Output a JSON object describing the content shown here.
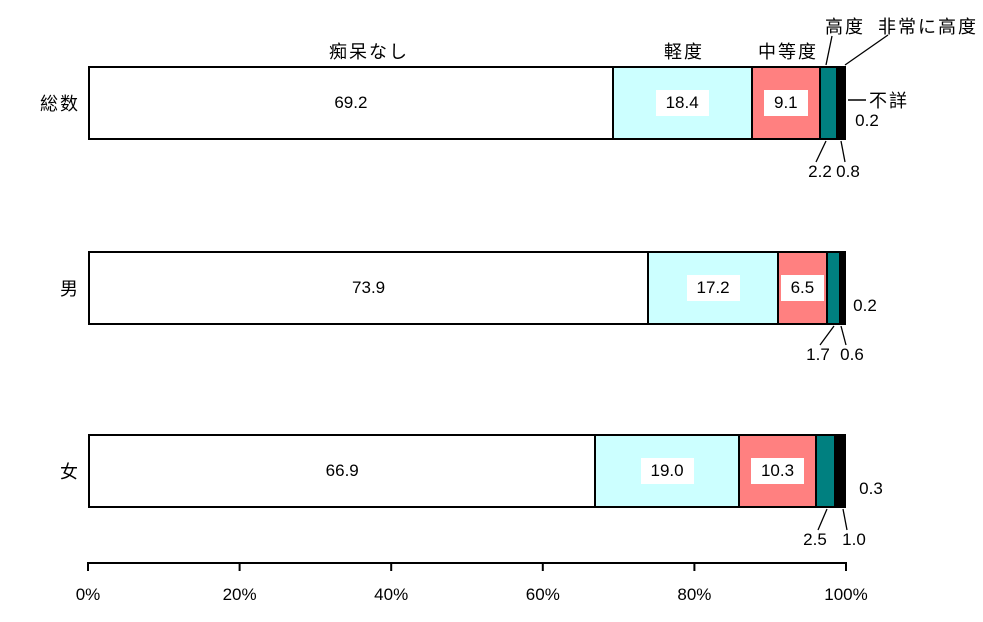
{
  "chart_data": {
    "type": "bar",
    "subtype": "horizontal-stacked",
    "unit": "%",
    "categories": [
      "総数",
      "男",
      "女"
    ],
    "series": [
      {
        "key": "no-dementia",
        "name": "痴呆なし",
        "color": "#FFFFFF",
        "values": [
          69.2,
          73.9,
          66.9
        ],
        "labels": [
          "69.2",
          "73.9",
          "66.9"
        ]
      },
      {
        "key": "mild",
        "name": "軽度",
        "color": "#CCFFFF",
        "values": [
          18.4,
          17.2,
          19.0
        ],
        "labels": [
          "18.4",
          "17.2",
          "19.0"
        ]
      },
      {
        "key": "moderate",
        "name": "中等度",
        "color": "#FF8080",
        "values": [
          9.1,
          6.5,
          10.3
        ],
        "labels": [
          "9.1",
          "6.5",
          "10.3"
        ]
      },
      {
        "key": "severe",
        "name": "高度",
        "color": "#008080",
        "values": [
          2.2,
          1.7,
          2.5
        ],
        "labels": [
          "2.2",
          "1.7",
          "2.5"
        ]
      },
      {
        "key": "very-severe",
        "name": "非常に高度",
        "color": "#000000",
        "values": [
          0.8,
          0.6,
          1.0
        ],
        "labels": [
          "0.8",
          "0.6",
          "1.0"
        ]
      },
      {
        "key": "unknown",
        "name": "不詳",
        "color": "#000000",
        "values": [
          0.2,
          0.2,
          0.3
        ],
        "labels": [
          "0.2",
          "0.2",
          "0.3"
        ]
      }
    ],
    "x_axis": {
      "min": 0,
      "max": 100,
      "tick_labels": [
        "0%",
        "20%",
        "40%",
        "60%",
        "80%",
        "100%"
      ],
      "grid": false
    },
    "legend_position": "series-labels-above-first-bar"
  }
}
